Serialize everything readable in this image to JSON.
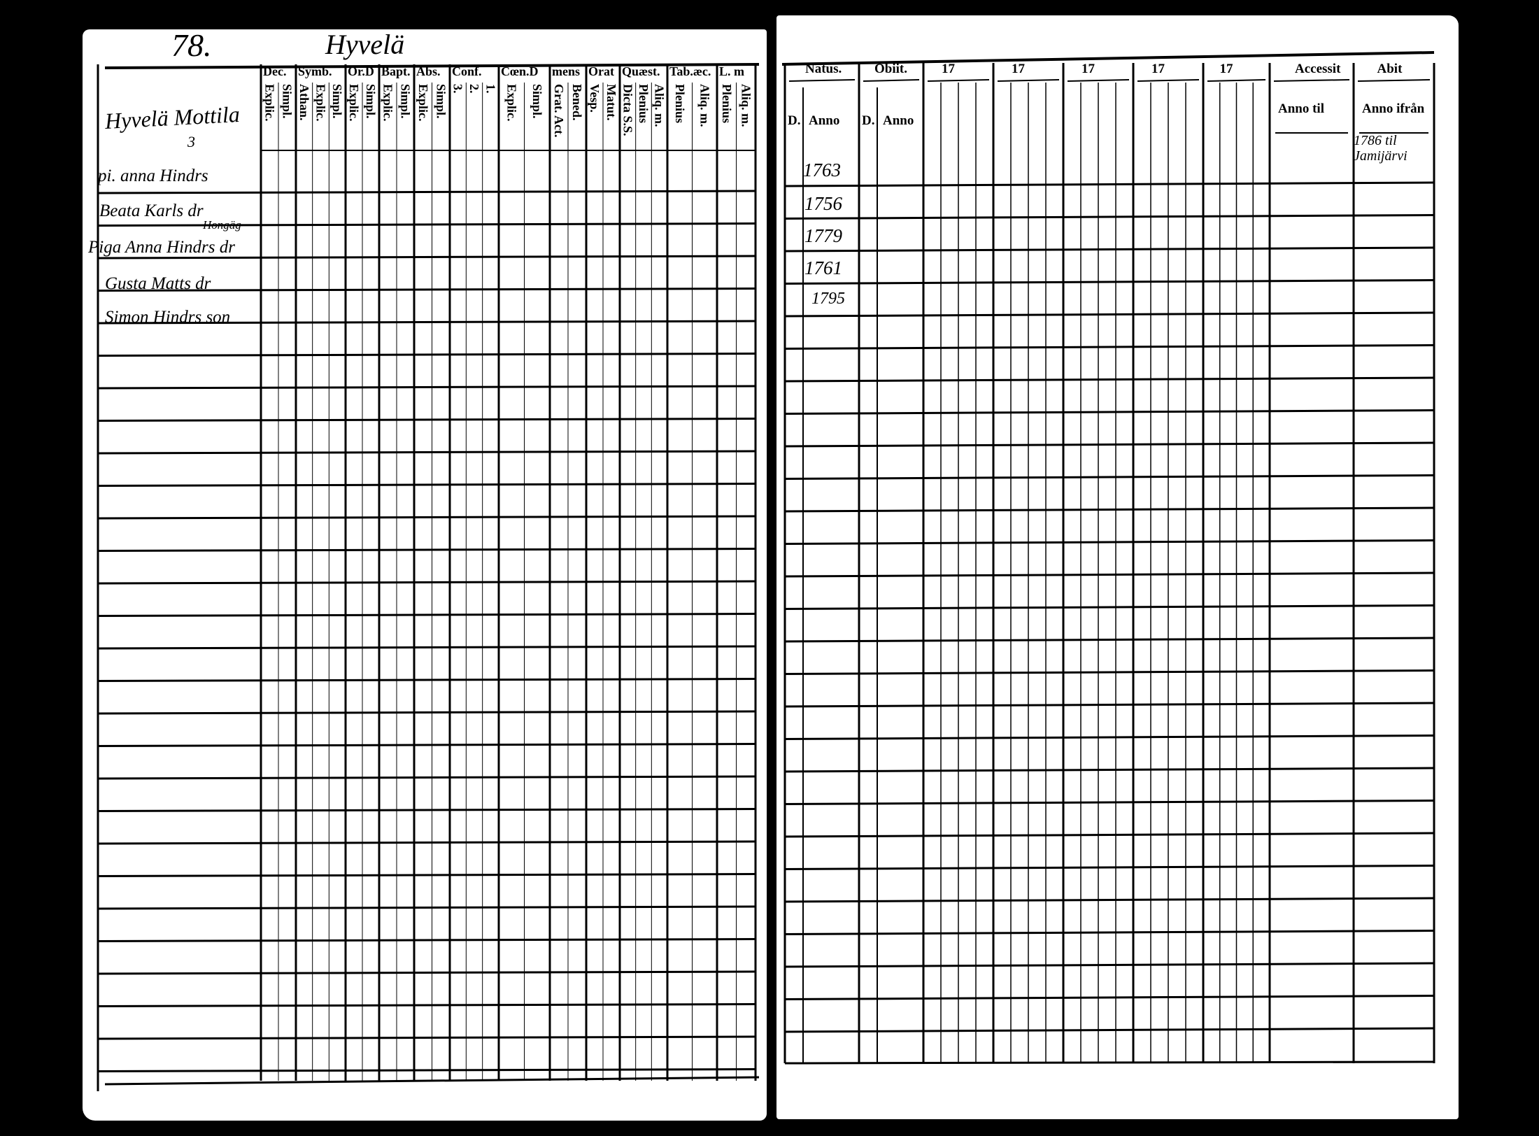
{
  "left_page": {
    "page_number": "78.",
    "village": "Hyvelä",
    "farm": "Hyvelä Mottila",
    "farm_note": "3",
    "columns": [
      {
        "title": "Dec.",
        "subs": [
          "Explic.",
          "Simpl."
        ]
      },
      {
        "title": "Symb.",
        "subs": [
          "Athan.",
          "Explic.",
          "Simpl."
        ]
      },
      {
        "title": "Or.D",
        "subs": [
          "Explic.",
          "Simpl."
        ]
      },
      {
        "title": "Bapt.",
        "subs": [
          "Explic.",
          "Simpl."
        ]
      },
      {
        "title": "Abs.",
        "subs": [
          "Explic.",
          "Simpl."
        ]
      },
      {
        "title": "Conf.",
        "subs": [
          "3.",
          "2.",
          "1."
        ]
      },
      {
        "title": "Cœn.D",
        "subs": [
          "Explic.",
          "Simpl."
        ]
      },
      {
        "title": "mens",
        "subs": [
          "Grat. Act.",
          "Bened."
        ]
      },
      {
        "title": "Orat",
        "subs": [
          "Vesp.",
          "Matut."
        ]
      },
      {
        "title": "Quæst.",
        "subs": [
          "Dicta S.S.",
          "Plenius",
          "Aliq. m."
        ]
      },
      {
        "title": "Tab.æc.",
        "subs": [
          "Plenius",
          "Aliq. m."
        ]
      },
      {
        "title": "L. m",
        "subs": [
          "Plenius",
          "Aliq. m."
        ]
      }
    ],
    "entries": [
      {
        "prefix": "pi.",
        "name": "anna Hindrs"
      },
      {
        "prefix": "",
        "name": "Beata Karls dr"
      },
      {
        "prefix": "Piga",
        "name": "Anna Hindrs dr",
        "note": "Hongäg"
      },
      {
        "prefix": "",
        "name": "Gusta Matts dr"
      },
      {
        "prefix": "",
        "name": "Simon Hindrs son"
      }
    ]
  },
  "right_page": {
    "columns": [
      {
        "title": "Natus.",
        "subs": [
          "D.",
          "Anno"
        ]
      },
      {
        "title": "Obiit.",
        "subs": [
          "D.",
          "Anno"
        ]
      },
      {
        "title": "17",
        "subs": []
      },
      {
        "title": "17",
        "subs": []
      },
      {
        "title": "17",
        "subs": []
      },
      {
        "title": "17",
        "subs": []
      },
      {
        "title": "17",
        "subs": []
      },
      {
        "title": "Accessit",
        "subs": [
          "Anno til"
        ]
      },
      {
        "title": "Abit",
        "subs": [
          "Anno ifrån"
        ]
      }
    ],
    "birth_years": [
      "1763",
      "1756",
      "1779",
      "1761",
      "1795"
    ],
    "abit_note": "1786 til Jamijärvi"
  }
}
